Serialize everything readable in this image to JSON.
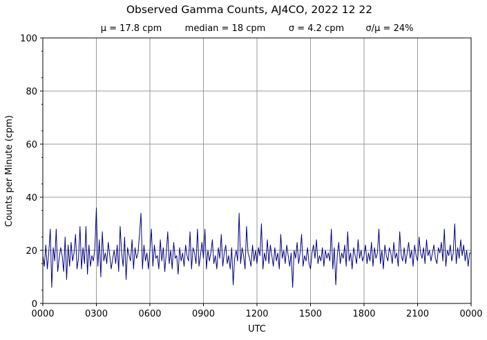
{
  "chart_data": {
    "type": "line",
    "title": "Observed Gamma Counts, AJ4CO, 2022 12 22",
    "subtitle": [
      "μ = 17.8 cpm",
      "median = 18 cpm",
      "σ = 4.2 cpm",
      "σ/μ = 24%"
    ],
    "xlabel": "UTC",
    "ylabel": "Counts per Minute (cpm)",
    "ylim": [
      0,
      100
    ],
    "yticks": [
      0,
      20,
      40,
      60,
      80,
      100
    ],
    "xticks": [
      "0000",
      "0300",
      "0600",
      "0900",
      "1200",
      "1500",
      "1800",
      "2100",
      "0000"
    ],
    "xlim_minutes_utc": [
      0,
      1440
    ],
    "sample_interval_minutes": 5,
    "grid": true,
    "line_color": "#000080",
    "values": [
      18,
      14,
      22,
      13,
      19,
      28,
      6,
      21,
      16,
      28,
      12,
      17,
      21,
      18,
      12,
      25,
      9,
      22,
      14,
      23,
      16,
      19,
      26,
      13,
      17,
      29,
      13,
      21,
      15,
      29,
      11,
      22,
      14,
      18,
      16,
      21,
      36,
      14,
      24,
      10,
      27,
      16,
      19,
      15,
      23,
      18,
      13,
      17,
      20,
      15,
      22,
      12,
      29,
      19,
      14,
      25,
      9,
      21,
      18,
      16,
      24,
      13,
      21,
      17,
      19,
      26,
      34,
      13,
      22,
      16,
      19,
      13,
      20,
      28,
      14,
      22,
      17,
      18,
      13,
      24,
      16,
      21,
      12,
      19,
      27,
      15,
      20,
      13,
      23,
      17,
      18,
      11,
      21,
      16,
      19,
      14,
      22,
      18,
      16,
      27,
      13,
      21,
      19,
      15,
      28,
      14,
      18,
      23,
      17,
      28,
      13,
      20,
      16,
      19,
      24,
      15,
      18,
      13,
      21,
      17,
      26,
      14,
      19,
      22,
      15,
      18,
      13,
      21,
      7,
      17,
      20,
      16,
      34,
      15,
      21,
      18,
      13,
      29,
      19,
      17,
      14,
      22,
      16,
      20,
      15,
      21,
      18,
      30,
      13,
      19,
      16,
      24,
      15,
      22,
      18,
      14,
      21,
      16,
      19,
      13,
      26,
      17,
      20,
      15,
      22,
      18,
      14,
      19,
      6,
      20,
      17,
      23,
      15,
      19,
      26,
      14,
      18,
      16,
      21,
      15,
      13,
      19,
      22,
      17,
      24,
      15,
      18,
      16,
      21,
      14,
      20,
      17,
      19,
      16,
      28,
      13,
      21,
      7,
      18,
      23,
      15,
      19,
      17,
      22,
      14,
      27,
      16,
      19,
      13,
      21,
      18,
      15,
      24,
      17,
      20,
      16,
      18,
      22,
      15,
      19,
      16,
      23,
      14,
      21,
      17,
      19,
      28,
      15,
      20,
      13,
      22,
      18,
      16,
      21,
      19,
      15,
      23,
      17,
      19,
      14,
      27,
      18,
      16,
      21,
      15,
      19,
      23,
      17,
      20,
      14,
      22,
      18,
      16,
      25,
      19,
      17,
      21,
      15,
      24,
      18,
      20,
      16,
      19,
      22,
      17,
      15,
      21,
      19,
      23,
      16,
      28,
      14,
      20,
      18,
      22,
      16,
      19,
      30,
      15,
      21,
      17,
      24,
      18,
      22,
      16,
      20,
      14,
      19
    ]
  }
}
